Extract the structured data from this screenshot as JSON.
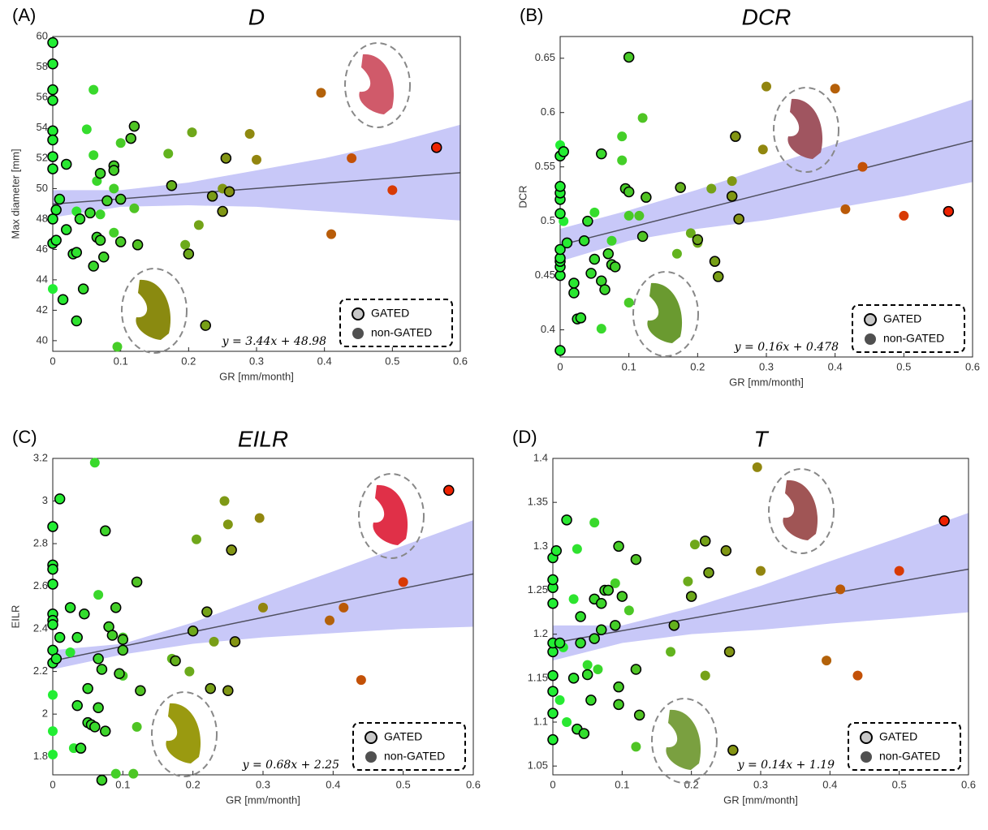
{
  "chart_data": [
    {
      "type": "scatter",
      "panel_label": "(A)",
      "title": "D",
      "xlabel": "GR [mm/month]",
      "ylabel": "Max diameter [mm]",
      "xlim": [
        0,
        0.6
      ],
      "ylim": [
        39.3,
        60
      ],
      "xticks": [
        0,
        0.1,
        0.2,
        0.3,
        0.4,
        0.5,
        0.6
      ],
      "yticks": [
        40,
        42,
        44,
        46,
        48,
        50,
        52,
        54,
        56,
        58,
        60
      ],
      "colormap": [
        "#22ee33",
        "#8c8c10",
        "#ee2200"
      ],
      "equation": "y = 3.44x + 48.98",
      "fit": {
        "slope": 3.44,
        "intercept": 48.98,
        "color": "#505060"
      },
      "band": {
        "color": "#c8c8f8",
        "x": [
          0,
          0.1,
          0.2,
          0.3,
          0.4,
          0.5,
          0.6
        ],
        "lower": [
          48.1,
          48.8,
          48.9,
          48.8,
          48.5,
          48.2,
          47.9
        ],
        "upper": [
          49.9,
          49.9,
          50.4,
          51.2,
          52.0,
          53.0,
          54.2
        ]
      },
      "series": [
        {
          "name": "GATED",
          "color": "#c8c8c8",
          "outline": "#000000",
          "x": [
            0.565,
            0,
            0,
            0,
            0,
            0,
            0,
            0,
            0,
            0.01,
            0.005,
            0,
            0,
            0.005,
            0.02,
            0.02,
            0.015,
            0.03,
            0.035,
            0.035,
            0.045,
            0.04,
            0.055,
            0.06,
            0.065,
            0.07,
            0.07,
            0.075,
            0.08,
            0.09,
            0.09,
            0.1,
            0.1,
            0.115,
            0.12,
            0.125,
            0.175,
            0.2,
            0.225,
            0.235,
            0.25,
            0.255,
            0.26
          ],
          "values": [
            52.7,
            59.6,
            58.2,
            56.5,
            55.8,
            53.8,
            53.2,
            52.1,
            51.3,
            49.3,
            48.6,
            48.0,
            46.4,
            46.6,
            51.6,
            47.3,
            42.7,
            45.7,
            45.8,
            41.3,
            43.4,
            48.0,
            48.4,
            44.9,
            46.8,
            46.6,
            51.0,
            45.5,
            49.2,
            51.5,
            51.2,
            49.3,
            46.5,
            53.3,
            54.1,
            46.3,
            50.2,
            45.7,
            41.0,
            49.5,
            48.5,
            52.0,
            49.8
          ]
        },
        {
          "name": "non-GATED",
          "color": "#505050",
          "x": [
            0,
            0.05,
            0.06,
            0.06,
            0.065,
            0.07,
            0.09,
            0.09,
            0.095,
            0.1,
            0.12,
            0.17,
            0.195,
            0.205,
            0.215,
            0.25,
            0.29,
            0.3,
            0.395,
            0.41,
            0.44,
            0.5,
            0.035
          ],
          "values": [
            43.4,
            53.9,
            56.5,
            52.2,
            50.5,
            48.3,
            50.0,
            47.1,
            39.6,
            53.0,
            48.7,
            52.3,
            46.3,
            53.7,
            47.6,
            50.0,
            53.6,
            51.9,
            56.3,
            47.0,
            52.0,
            49.9,
            48.5
          ]
        }
      ]
    },
    {
      "type": "scatter",
      "panel_label": "(B)",
      "title": "DCR",
      "xlabel": "GR [mm/month]",
      "ylabel": "DCR",
      "xlim": [
        0,
        0.6
      ],
      "ylim": [
        0.375,
        0.67
      ],
      "xticks": [
        0,
        0.1,
        0.2,
        0.3,
        0.4,
        0.5,
        0.6
      ],
      "yticks": [
        0.4,
        0.45,
        0.5,
        0.55,
        0.6,
        0.65
      ],
      "colormap": [
        "#22ee33",
        "#8c8c10",
        "#ee2200"
      ],
      "equation": "y = 0.16x + 0.478",
      "fit": {
        "slope": 0.16,
        "intercept": 0.478,
        "color": "#505060"
      },
      "band": {
        "color": "#c8c8f8",
        "x": [
          0,
          0.1,
          0.2,
          0.3,
          0.4,
          0.5,
          0.6
        ],
        "lower": [
          0.463,
          0.482,
          0.493,
          0.501,
          0.512,
          0.523,
          0.536
        ],
        "upper": [
          0.493,
          0.51,
          0.529,
          0.55,
          0.571,
          0.591,
          0.612
        ]
      },
      "series": [
        {
          "name": "GATED",
          "color": "#c8c8c8",
          "outline": "#000000",
          "x": [
            0.565,
            0,
            0,
            0,
            0,
            0,
            0,
            0,
            0,
            0,
            0,
            0,
            0.005,
            0.01,
            0.02,
            0.02,
            0.025,
            0.03,
            0.035,
            0.04,
            0.045,
            0.05,
            0.06,
            0.06,
            0.065,
            0.07,
            0.075,
            0.08,
            0.095,
            0.1,
            0.1,
            0.12,
            0.125,
            0.175,
            0.2,
            0.225,
            0.23,
            0.255,
            0.26,
            0.25
          ],
          "values": [
            0.509,
            0.381,
            0.45,
            0.458,
            0.463,
            0.466,
            0.474,
            0.507,
            0.52,
            0.526,
            0.532,
            0.56,
            0.564,
            0.48,
            0.443,
            0.434,
            0.41,
            0.411,
            0.482,
            0.5,
            0.452,
            0.465,
            0.445,
            0.562,
            0.437,
            0.47,
            0.46,
            0.458,
            0.53,
            0.651,
            0.527,
            0.486,
            0.522,
            0.531,
            0.483,
            0.463,
            0.449,
            0.578,
            0.502,
            0.523
          ]
        },
        {
          "name": "non-GATED",
          "color": "#505050",
          "x": [
            0,
            0.005,
            0.05,
            0.06,
            0.075,
            0.09,
            0.09,
            0.1,
            0.1,
            0.115,
            0.12,
            0.17,
            0.19,
            0.2,
            0.22,
            0.25,
            0.295,
            0.3,
            0.4,
            0.415,
            0.44,
            0.5
          ],
          "values": [
            0.57,
            0.5,
            0.508,
            0.401,
            0.482,
            0.556,
            0.578,
            0.505,
            0.425,
            0.505,
            0.595,
            0.47,
            0.489,
            0.48,
            0.53,
            0.537,
            0.566,
            0.624,
            0.622,
            0.511,
            0.55,
            0.505
          ]
        }
      ]
    },
    {
      "type": "scatter",
      "panel_label": "(C)",
      "title": "EILR",
      "xlabel": "GR [mm/month]",
      "ylabel": "EILR",
      "xlim": [
        0,
        0.6
      ],
      "ylim": [
        1.715,
        3.2
      ],
      "xticks": [
        0,
        0.1,
        0.2,
        0.3,
        0.4,
        0.5,
        0.6
      ],
      "yticks": [
        1.8,
        2,
        2.2,
        2.4,
        2.6,
        2.8,
        3,
        3.2
      ],
      "colormap": [
        "#22ee33",
        "#8c8c10",
        "#ee2200"
      ],
      "equation": "y = 0.68x + 2.25",
      "fit": {
        "slope": 0.68,
        "intercept": 2.25,
        "color": "#505060"
      },
      "band": {
        "color": "#c8c8f8",
        "x": [
          0,
          0.1,
          0.2,
          0.3,
          0.4,
          0.5,
          0.6
        ],
        "lower": [
          2.21,
          2.28,
          2.33,
          2.36,
          2.38,
          2.4,
          2.41
        ],
        "upper": [
          2.3,
          2.33,
          2.43,
          2.55,
          2.67,
          2.79,
          2.91
        ]
      },
      "series": [
        {
          "name": "GATED",
          "color": "#c8c8c8",
          "outline": "#000000",
          "x": [
            0.565,
            0,
            0,
            0,
            0,
            0,
            0,
            0,
            0,
            0,
            0.005,
            0.01,
            0.01,
            0.025,
            0.035,
            0.045,
            0.04,
            0.035,
            0.05,
            0.05,
            0.055,
            0.06,
            0.065,
            0.065,
            0.07,
            0.07,
            0.075,
            0.075,
            0.08,
            0.085,
            0.09,
            0.095,
            0.1,
            0.1,
            0.12,
            0.125,
            0.175,
            0.2,
            0.22,
            0.225,
            0.25,
            0.255,
            0.26
          ],
          "values": [
            3.05,
            2.88,
            2.7,
            2.68,
            2.61,
            2.47,
            2.44,
            2.42,
            2.3,
            2.24,
            2.26,
            3.01,
            2.36,
            2.5,
            2.36,
            2.47,
            1.84,
            2.04,
            2.12,
            1.96,
            1.95,
            1.94,
            2.26,
            2.03,
            1.69,
            2.21,
            1.92,
            2.86,
            2.41,
            2.37,
            2.5,
            2.19,
            2.3,
            2.35,
            2.62,
            2.11,
            2.25,
            2.39,
            2.48,
            2.12,
            2.11,
            2.77,
            2.34
          ]
        },
        {
          "name": "non-GATED",
          "color": "#505050",
          "x": [
            0,
            0,
            0,
            0.025,
            0.03,
            0.06,
            0.065,
            0.09,
            0.1,
            0.1,
            0.12,
            0.115,
            0.17,
            0.195,
            0.205,
            0.23,
            0.245,
            0.25,
            0.295,
            0.3,
            0.395,
            0.415,
            0.44,
            0.5
          ],
          "values": [
            2.09,
            1.92,
            1.81,
            2.29,
            1.84,
            3.18,
            2.56,
            1.72,
            2.36,
            2.18,
            1.94,
            1.72,
            2.26,
            2.2,
            2.82,
            2.34,
            3.0,
            2.89,
            2.92,
            2.5,
            2.44,
            2.5,
            2.16,
            2.62
          ]
        }
      ]
    },
    {
      "type": "scatter",
      "panel_label": "(D)",
      "title": "T",
      "xlabel": "GR [mm/month]",
      "xlim": [
        0,
        0.6
      ],
      "ylim": [
        1.04,
        1.4
      ],
      "xticks": [
        0,
        0.1,
        0.2,
        0.3,
        0.4,
        0.5,
        0.6
      ],
      "yticks": [
        1.05,
        1.1,
        1.15,
        1.2,
        1.25,
        1.3,
        1.35,
        1.4
      ],
      "colormap": [
        "#22ee33",
        "#8c8c10",
        "#ee2200"
      ],
      "equation": "y = 0.14x + 1.19",
      "fit": {
        "slope": 0.14,
        "intercept": 1.19,
        "color": "#505060"
      },
      "band": {
        "color": "#c8c8f8",
        "x": [
          0,
          0.1,
          0.2,
          0.3,
          0.4,
          0.5,
          0.6
        ],
        "lower": [
          1.17,
          1.19,
          1.2,
          1.205,
          1.212,
          1.218,
          1.225
        ],
        "upper": [
          1.21,
          1.21,
          1.23,
          1.255,
          1.283,
          1.31,
          1.338
        ]
      },
      "series": [
        {
          "name": "GATED",
          "color": "#c8c8c8",
          "outline": "#000000",
          "x": [
            0.565,
            0,
            0,
            0,
            0,
            0,
            0,
            0,
            0,
            0,
            0,
            0.005,
            0.01,
            0.02,
            0.03,
            0.035,
            0.04,
            0.04,
            0.045,
            0.05,
            0.055,
            0.06,
            0.06,
            0.07,
            0.07,
            0.075,
            0.08,
            0.09,
            0.095,
            0.095,
            0.095,
            0.1,
            0.12,
            0.125,
            0.12,
            0.175,
            0.2,
            0.22,
            0.225,
            0.25,
            0.255,
            0.26
          ],
          "values": [
            1.329,
            1.08,
            1.11,
            1.135,
            1.153,
            1.18,
            1.19,
            1.235,
            1.253,
            1.262,
            1.287,
            1.295,
            1.19,
            1.33,
            1.15,
            1.092,
            1.22,
            1.19,
            1.087,
            1.154,
            1.125,
            1.24,
            1.195,
            1.235,
            1.205,
            1.25,
            1.25,
            1.21,
            1.12,
            1.3,
            1.14,
            1.243,
            1.16,
            1.108,
            1.285,
            1.21,
            1.243,
            1.306,
            1.27,
            1.295,
            1.18,
            1.068
          ]
        },
        {
          "name": "non-GATED",
          "color": "#505050",
          "x": [
            0.01,
            0.015,
            0.02,
            0.03,
            0.035,
            0.05,
            0.06,
            0.065,
            0.09,
            0.11,
            0.12,
            0.17,
            0.195,
            0.205,
            0.22,
            0.295,
            0.3,
            0.395,
            0.415,
            0.44,
            0.5
          ],
          "values": [
            1.125,
            1.185,
            1.1,
            1.24,
            1.297,
            1.165,
            1.327,
            1.16,
            1.258,
            1.227,
            1.072,
            1.18,
            1.26,
            1.302,
            1.153,
            1.39,
            1.272,
            1.17,
            1.251,
            1.153,
            1.272
          ]
        }
      ]
    }
  ]
}
